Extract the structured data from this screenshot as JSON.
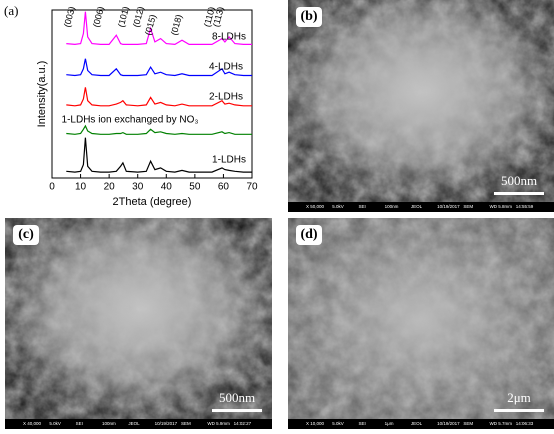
{
  "chart_data": {
    "type": "line",
    "panel_label": "(a)",
    "x_label": "2Theta (degree)",
    "y_label": "Intensity(a.u.)",
    "xlim": [
      0,
      70
    ],
    "xticks": [
      0,
      10,
      20,
      30,
      40,
      50,
      60,
      70
    ],
    "ylim": [
      0,
      100
    ],
    "annotations": [
      "(003)",
      "(006)",
      "(101)",
      "(012)",
      "(015)",
      "(018)",
      "(110)",
      "(113)"
    ],
    "x": [
      5,
      8,
      10,
      11,
      11.7,
      12.5,
      14,
      17,
      20,
      22.5,
      24,
      24.8,
      26,
      30,
      33,
      34.5,
      36,
      38,
      40,
      43,
      45.5,
      48,
      52,
      56,
      59.5,
      60.5,
      62,
      64,
      67,
      70
    ],
    "series": [
      {
        "name": "8-LDHs",
        "color": "#ff00ff",
        "values": [
          80,
          79.5,
          80,
          86,
          99,
          84,
          80,
          79.5,
          79.5,
          85,
          80,
          79.5,
          79.5,
          79.5,
          80,
          89,
          81,
          83,
          80,
          79.5,
          82,
          79.5,
          79.5,
          79.5,
          83,
          81,
          84,
          80,
          79.5,
          79.5
        ]
      },
      {
        "name": "4-LDHs",
        "color": "#0000ff",
        "values": [
          61.5,
          61,
          61.5,
          65,
          71,
          64,
          61.5,
          61,
          61,
          65,
          61.5,
          61,
          61,
          61,
          61.5,
          66,
          62,
          63,
          61.5,
          61,
          62,
          61,
          61,
          61,
          65,
          62,
          63,
          61.5,
          61,
          61
        ]
      },
      {
        "name": "2-LDHs",
        "color": "#ff0000",
        "values": [
          43.5,
          43,
          43.5,
          47,
          54,
          46,
          43.5,
          43,
          43,
          44,
          45,
          46,
          43.5,
          43,
          43.5,
          48,
          44,
          45,
          43.5,
          43,
          44,
          43,
          43,
          43,
          46,
          44,
          44.5,
          43.5,
          43,
          43
        ]
      },
      {
        "name": "1-LDHs ion exchanged by NO₃",
        "color": "#008000",
        "values": [
          26.5,
          26,
          26.5,
          29,
          31,
          28,
          26.5,
          26,
          26,
          26.5,
          26.5,
          27,
          26,
          26,
          26.5,
          29,
          27,
          27.5,
          26.5,
          26,
          26.5,
          26,
          26,
          26,
          27.5,
          26.5,
          27,
          26,
          26,
          26
        ]
      },
      {
        "name": "1-LDHs",
        "color": "#000000",
        "values": [
          4,
          3.5,
          4,
          8,
          24,
          7,
          4,
          3.5,
          3.5,
          4,
          7,
          9,
          4,
          3.5,
          4,
          10,
          5,
          6,
          4,
          3.5,
          4.5,
          3.5,
          3.5,
          3.5,
          6,
          5,
          4.5,
          4,
          3.5,
          3.5
        ]
      }
    ]
  },
  "sem_panels": [
    {
      "label": "(b)",
      "scale_bar": "500nm",
      "strip": [
        "X 50,000",
        "5.0kV",
        "SEI",
        "100nm",
        "JEOL",
        "10/19/2017",
        "SEM",
        "WD 5.8mm",
        "14:55:59"
      ]
    },
    {
      "label": "(c)",
      "scale_bar": "500nm",
      "strip": [
        "X 40,000",
        "5.0kV",
        "SEI",
        "100nm",
        "JEOL",
        "10/19/2017",
        "SEM",
        "WD 5.9mm",
        "14:02:27"
      ]
    },
    {
      "label": "(d)",
      "scale_bar": "2μm",
      "strip": [
        "X 10,000",
        "5.0kV",
        "SEI",
        "1μm",
        "JEOL",
        "10/19/2017",
        "SEM",
        "WD 5.7mm",
        "14:06:33"
      ]
    }
  ]
}
